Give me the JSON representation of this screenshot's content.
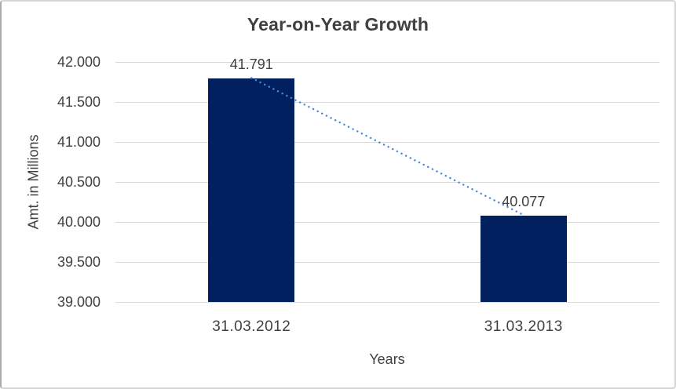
{
  "chart_data": {
    "type": "bar",
    "title": "Year-on-Year Growth",
    "xlabel": "Years",
    "ylabel": "Amt. in Millions",
    "categories": [
      "31.03.2012",
      "31.03.2013"
    ],
    "values": [
      41.791,
      40.077
    ],
    "value_labels": [
      "41.791",
      "40.077"
    ],
    "ylim": [
      39.0,
      42.0
    ],
    "yticks": [
      {
        "value": 39.0,
        "label": "39.000"
      },
      {
        "value": 39.5,
        "label": "39.500"
      },
      {
        "value": 40.0,
        "label": "40.000"
      },
      {
        "value": 40.5,
        "label": "40.500"
      },
      {
        "value": 41.0,
        "label": "41.000"
      },
      {
        "value": 41.5,
        "label": "41.500"
      },
      {
        "value": 42.0,
        "label": "42.000"
      }
    ],
    "grid": true,
    "legend": false,
    "trendline": {
      "style": "dotted",
      "connects": [
        "31.03.2012",
        "31.03.2013"
      ]
    },
    "colors": {
      "bar": "#002060",
      "trendline": "#4a89d8",
      "gridline": "#d9d9d9",
      "text": "#404040"
    }
  }
}
